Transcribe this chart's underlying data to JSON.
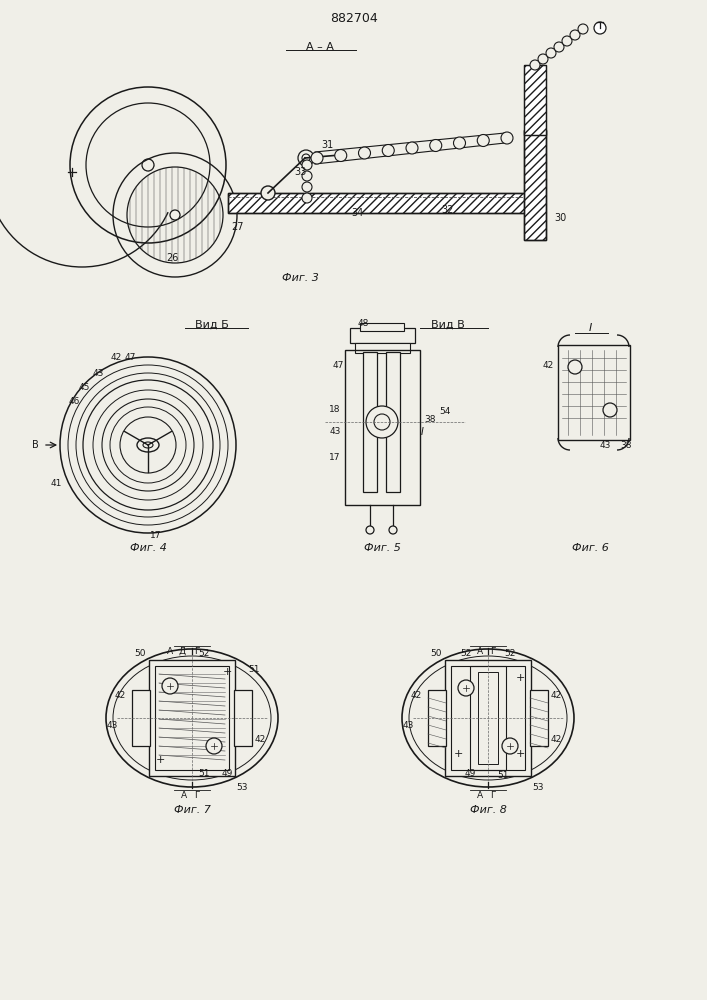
{
  "patent_number": "882704",
  "bg_color": "#f0efe8",
  "line_color": "#1a1a1a",
  "fig3_label": "Фиг. 3",
  "fig4_label": "Фиг. 4",
  "fig5_label": "Фиг. 5",
  "fig6_label": "Фиг. 6",
  "fig7_label": "Фиг. 7",
  "fig8_label": "Фиг. 8",
  "section_aa": "А – А",
  "view_b": "Вид Б",
  "view_v": "Вид В",
  "section_i": "I"
}
